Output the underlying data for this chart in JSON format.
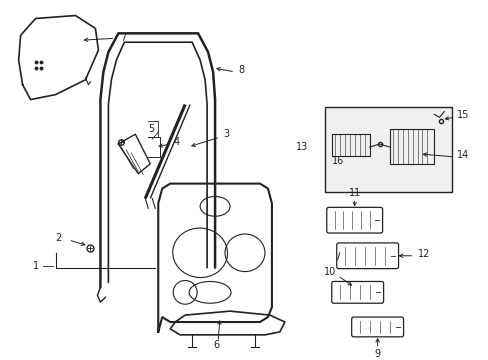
{
  "background_color": "#ffffff",
  "fig_width": 4.89,
  "fig_height": 3.6,
  "dpi": 100,
  "line_color": "#222222",
  "label_fontsize": 7.0
}
